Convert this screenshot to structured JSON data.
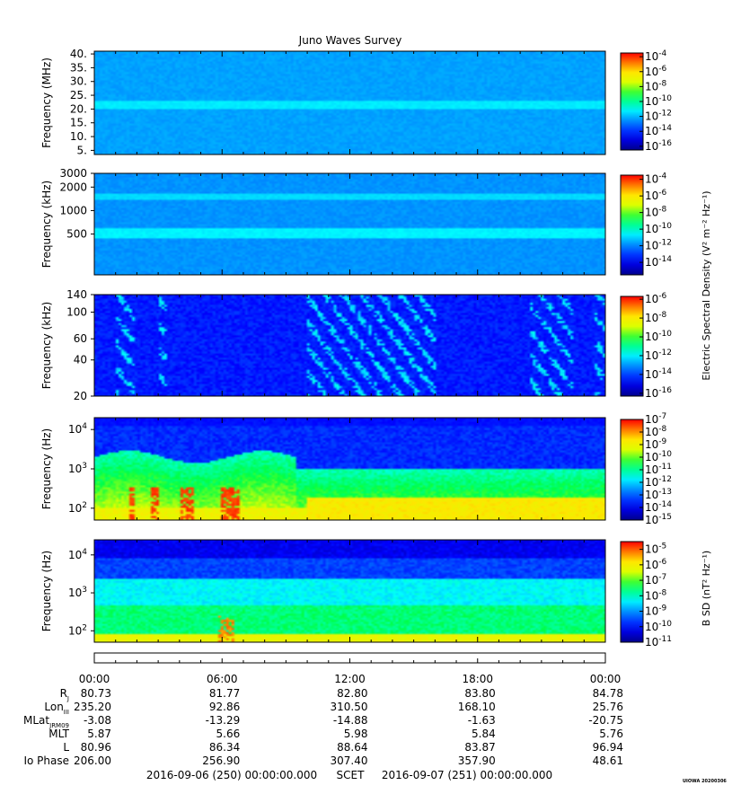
{
  "title": "Juno Waves Survey",
  "credit": "UIOWA 20200306",
  "time_axis": {
    "ticks": [
      "00:00",
      "06:00",
      "12:00",
      "18:00",
      "00:00"
    ],
    "rows": [
      {
        "label": "R",
        "sub": "J",
        "values": [
          "80.73",
          "81.77",
          "82.80",
          "83.80",
          "84.78"
        ]
      },
      {
        "label": "Lon",
        "sub": "III",
        "values": [
          "235.20",
          "92.86",
          "310.50",
          "168.10",
          "25.76"
        ]
      },
      {
        "label": "MLat",
        "sub": "JRM09",
        "values": [
          "-3.08",
          "-13.29",
          "-14.88",
          "-1.63",
          "-20.75"
        ]
      },
      {
        "label": "MLT",
        "sub": "",
        "values": [
          "5.87",
          "5.66",
          "5.98",
          "5.84",
          "5.76"
        ]
      },
      {
        "label": "L",
        "sub": "",
        "values": [
          "80.96",
          "86.34",
          "88.64",
          "83.87",
          "96.94"
        ]
      },
      {
        "label": "Io Phase",
        "sub": "",
        "values": [
          "206.00",
          "256.90",
          "307.40",
          "357.90",
          "48.61"
        ]
      }
    ],
    "footer_start": "2016-09-06 (250) 00:00:00.000",
    "footer_mid": "SCET",
    "footer_end": "2016-09-07 (251) 00:00:00.000"
  },
  "colorbar_labels": {
    "efield": "Electric Spectral Density (V² m⁻² Hz⁻¹)",
    "bfield": "B SD (nT² Hz⁻¹)"
  },
  "chart_data": [
    {
      "type": "heatmap",
      "ylabel": "Frequency (MHz)",
      "yscale": "linear",
      "ylim": [
        3.5,
        41
      ],
      "yticks": [
        5,
        10,
        15,
        20,
        25,
        30,
        35,
        40
      ],
      "ytick_labels": [
        "5.",
        "10.",
        "15.",
        "20.",
        "25.",
        "30.",
        "35.",
        "40."
      ],
      "colorbar": {
        "min_exp": -16.5,
        "max_exp": -3.5,
        "ticks": [
          -16,
          -14,
          -12,
          -10,
          -8,
          -6,
          -4
        ]
      },
      "features": {
        "background_exp": -12.3,
        "bands": [
          {
            "center": 21.5,
            "width": 1.2,
            "exp": -11.3
          }
        ]
      }
    },
    {
      "type": "heatmap",
      "ylabel": "Frequency (kHz)",
      "yscale": "log",
      "ylim": [
        150,
        3000
      ],
      "yticks": [
        500,
        1000,
        2000,
        3000
      ],
      "ytick_labels": [
        "500",
        "1000",
        "2000",
        "3000"
      ],
      "colorbar": {
        "min_exp": -15.5,
        "max_exp": -3.5,
        "ticks": [
          -14,
          -12,
          -10,
          -8,
          -6,
          -4
        ]
      },
      "features": {
        "background_exp": -11.8,
        "bands": [
          {
            "center": 500,
            "width": 0.05,
            "exp": -10.6
          },
          {
            "center": 1500,
            "width": 0.03,
            "exp": -10.9
          }
        ]
      }
    },
    {
      "type": "heatmap",
      "ylabel": "Frequency (kHz)",
      "yscale": "log",
      "ylim": [
        20,
        140
      ],
      "yticks": [
        20,
        40,
        60,
        100,
        140
      ],
      "ytick_labels": [
        "20",
        "40",
        "60",
        "100",
        "140"
      ],
      "colorbar": {
        "min_exp": -16.3,
        "max_exp": -5.7,
        "ticks": [
          -16,
          -14,
          -12,
          -10,
          -8,
          -6
        ]
      },
      "features": {
        "background_exp": -14.5,
        "bursts": [
          [
            1.0,
            1.8
          ],
          [
            3.0,
            3.4
          ],
          [
            10.0,
            16.0
          ],
          [
            20.5,
            22.5
          ],
          [
            23.5,
            24.0
          ]
        ]
      }
    },
    {
      "type": "heatmap",
      "ylabel": "Frequency (Hz)",
      "yscale": "log",
      "ylim": [
        50,
        20000
      ],
      "yticks": [
        100,
        1000,
        10000
      ],
      "ytick_labels": [
        "10^2",
        "10^3",
        "10^4"
      ],
      "colorbar": {
        "min_exp": -15.0,
        "max_exp": -7.0,
        "ticks": [
          -15,
          -14,
          -13,
          -12,
          -11,
          -10,
          -9,
          -8,
          -7
        ]
      },
      "features": {
        "hot_intervals": [
          [
            1.6,
            1.9
          ],
          [
            2.6,
            3.0
          ],
          [
            4.0,
            4.6
          ],
          [
            5.9,
            6.8
          ]
        ]
      }
    },
    {
      "type": "heatmap",
      "ylabel": "Frequency (Hz)",
      "yscale": "log",
      "ylim": [
        50,
        25000
      ],
      "yticks": [
        100,
        1000,
        10000
      ],
      "ytick_labels": [
        "10^2",
        "10^3",
        "10^4"
      ],
      "colorbar": {
        "min_exp": -11.0,
        "max_exp": -4.5,
        "ticks": [
          -11,
          -10,
          -9,
          -8,
          -7,
          -6,
          -5
        ]
      },
      "features": {
        "hot_intervals": [
          [
            5.8,
            6.6
          ]
        ]
      }
    }
  ]
}
